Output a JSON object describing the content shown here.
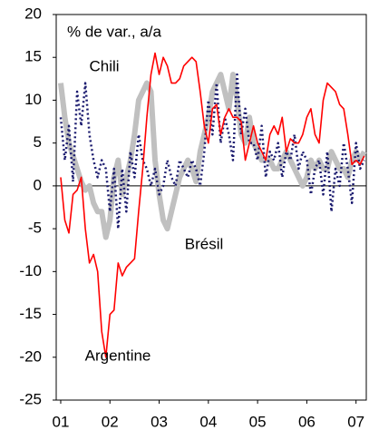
{
  "chart_data": {
    "type": "line",
    "title": "% de var., a/a",
    "x": [
      0,
      1,
      2,
      3,
      4,
      5,
      6,
      7,
      8,
      9,
      10,
      11,
      12,
      13,
      14,
      15,
      16,
      17,
      18,
      19,
      20,
      21,
      22,
      23,
      24,
      25,
      26,
      27,
      28,
      29,
      30,
      31,
      32,
      33,
      34,
      35,
      36,
      37,
      38,
      39,
      40,
      41,
      42,
      43,
      44,
      45,
      46,
      47,
      48,
      49,
      50,
      51,
      52,
      53,
      54,
      55,
      56,
      57,
      58,
      59,
      60,
      61,
      62,
      63,
      64,
      65,
      66,
      67,
      68,
      69,
      70,
      71,
      72,
      73,
      74
    ],
    "xlim": [
      -1.1,
      74.5
    ],
    "xticks": [
      {
        "value": 0,
        "label": "01"
      },
      {
        "value": 12,
        "label": "02"
      },
      {
        "value": 24,
        "label": "03"
      },
      {
        "value": 36,
        "label": "04"
      },
      {
        "value": 48,
        "label": "05"
      },
      {
        "value": 60,
        "label": "06"
      },
      {
        "value": 72,
        "label": "07"
      }
    ],
    "ylim": [
      -25,
      20
    ],
    "yticks": [
      -25,
      -20,
      -15,
      -10,
      -5,
      0,
      5,
      10,
      15,
      20
    ],
    "grid": false,
    "series": [
      {
        "name": "Brésil",
        "color": "#c0c0c0",
        "values": [
          12,
          8,
          5,
          3.5,
          2,
          0.5,
          -0.5,
          0,
          -2,
          -3,
          -3,
          -6,
          -4,
          1,
          3,
          -1,
          1,
          3,
          6,
          10,
          11,
          12,
          11,
          3,
          -1,
          -4,
          -5,
          -3,
          -1,
          1,
          2,
          3,
          2,
          0.5,
          4,
          6,
          8,
          11,
          12,
          13,
          11,
          9,
          13,
          10,
          6,
          5,
          8,
          5,
          4,
          3,
          3,
          3,
          2,
          2,
          3,
          4,
          3,
          2,
          1,
          0,
          1,
          3,
          2,
          3,
          2,
          2,
          4,
          3,
          2,
          2,
          1,
          3,
          4,
          3,
          4
        ]
      },
      {
        "name": "Chili",
        "color": "#1a1a6e",
        "values": [
          8,
          3,
          7,
          0.5,
          11,
          7,
          12,
          6,
          3,
          1,
          3,
          2,
          -3,
          2,
          -5,
          2,
          -3,
          4,
          1,
          6,
          3,
          2,
          0,
          2,
          -1,
          0,
          3,
          1,
          0,
          3,
          2,
          1,
          3,
          2,
          0,
          4,
          10,
          6,
          12,
          5,
          8,
          6,
          3,
          13,
          6,
          9,
          5,
          5,
          3,
          7,
          1,
          4,
          3,
          5,
          1,
          4,
          3,
          6,
          2,
          4,
          3,
          -1,
          2,
          3,
          -1,
          4,
          -3,
          2,
          0,
          5,
          2,
          -2,
          5,
          2,
          3
        ]
      },
      {
        "name": "Argentine",
        "color": "#ff0000",
        "values": [
          1,
          -4,
          -5.5,
          -1,
          -0.5,
          1,
          -5,
          -9,
          -8,
          -10,
          -17,
          -20,
          -15,
          -14.5,
          -9,
          -10.5,
          -9.5,
          -9,
          -8.5,
          -3,
          2,
          8,
          13,
          15.5,
          13,
          15,
          14,
          12,
          12,
          12.5,
          14,
          14.5,
          15,
          14.5,
          11,
          7,
          5,
          9,
          9.5,
          6,
          8,
          9,
          8,
          8,
          7.5,
          3,
          5,
          7,
          5,
          4,
          3,
          6,
          7,
          6,
          8,
          4,
          5.5,
          5,
          5,
          6,
          8,
          9,
          6,
          5,
          10,
          12,
          11.5,
          11,
          9.5,
          9,
          6,
          2.5,
          3,
          2.5,
          3.5
        ]
      }
    ]
  }
}
